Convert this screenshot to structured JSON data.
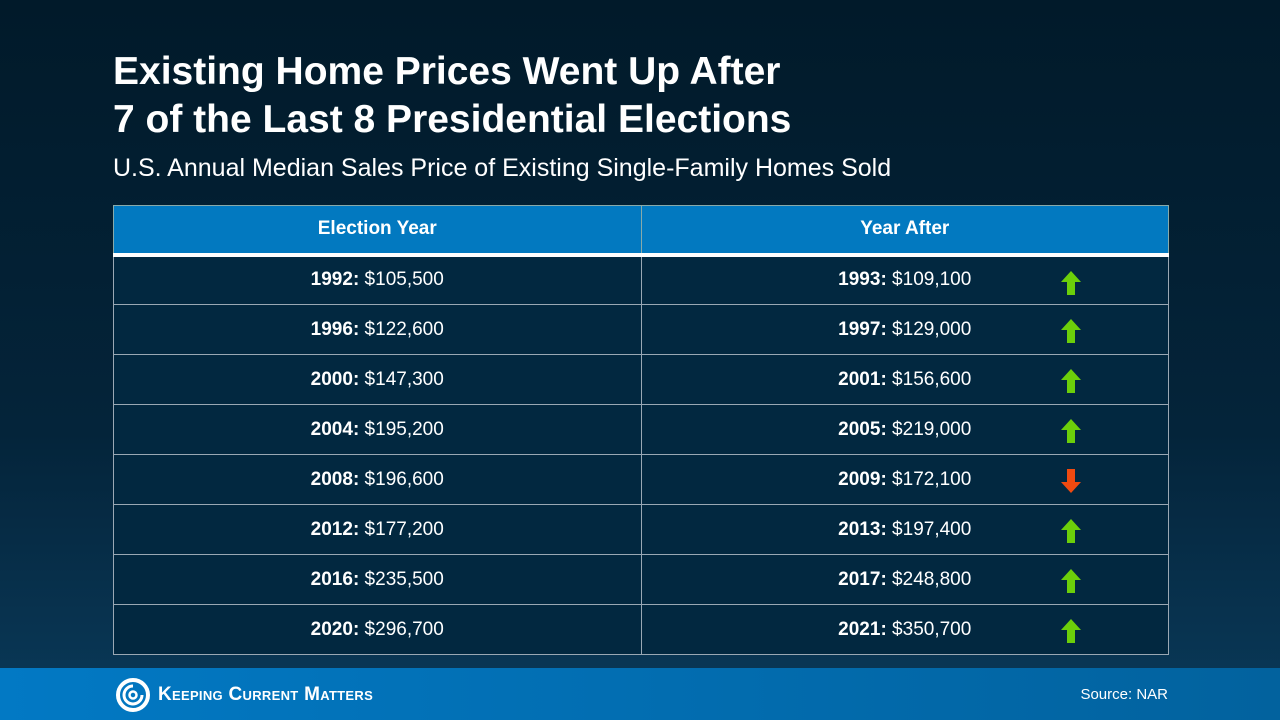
{
  "title_line1": "Existing Home Prices Went Up After",
  "title_line2": "7 of the Last 8 Presidential Elections",
  "subtitle": "U.S. Annual Median Sales Price of Existing Single-Family Homes Sold",
  "columns": [
    "Election Year",
    "Year After"
  ],
  "rows": [
    {
      "ey": "1992:",
      "ep": " $105,500",
      "ay": "1993:",
      "ap": " $109,100",
      "trend": "up"
    },
    {
      "ey": "1996:",
      "ep": " $122,600",
      "ay": "1997:",
      "ap": " $129,000",
      "trend": "up"
    },
    {
      "ey": "2000:",
      "ep": " $147,300",
      "ay": "2001:",
      "ap": " $156,600",
      "trend": "up"
    },
    {
      "ey": "2004:",
      "ep": " $195,200",
      "ay": "2005:",
      "ap": " $219,000",
      "trend": "up"
    },
    {
      "ey": "2008:",
      "ep": " $196,600",
      "ay": "2009:",
      "ap": " $172,100",
      "trend": "down"
    },
    {
      "ey": "2012:",
      "ep": " $177,200",
      "ay": "2013:",
      "ap": " $197,400",
      "trend": "up"
    },
    {
      "ey": "2016:",
      "ep": " $235,500",
      "ay": "2017:",
      "ap": " $248,800",
      "trend": "up"
    },
    {
      "ey": "2020:",
      "ep": " $296,700",
      "ay": "2021:",
      "ap": " $350,700",
      "trend": "up"
    }
  ],
  "colors": {
    "up": "#6ccf0a",
    "down": "#f04a10",
    "header": "#0279c0"
  },
  "footer": {
    "logo": "Keeping Current Matters",
    "source": "Source: NAR"
  }
}
